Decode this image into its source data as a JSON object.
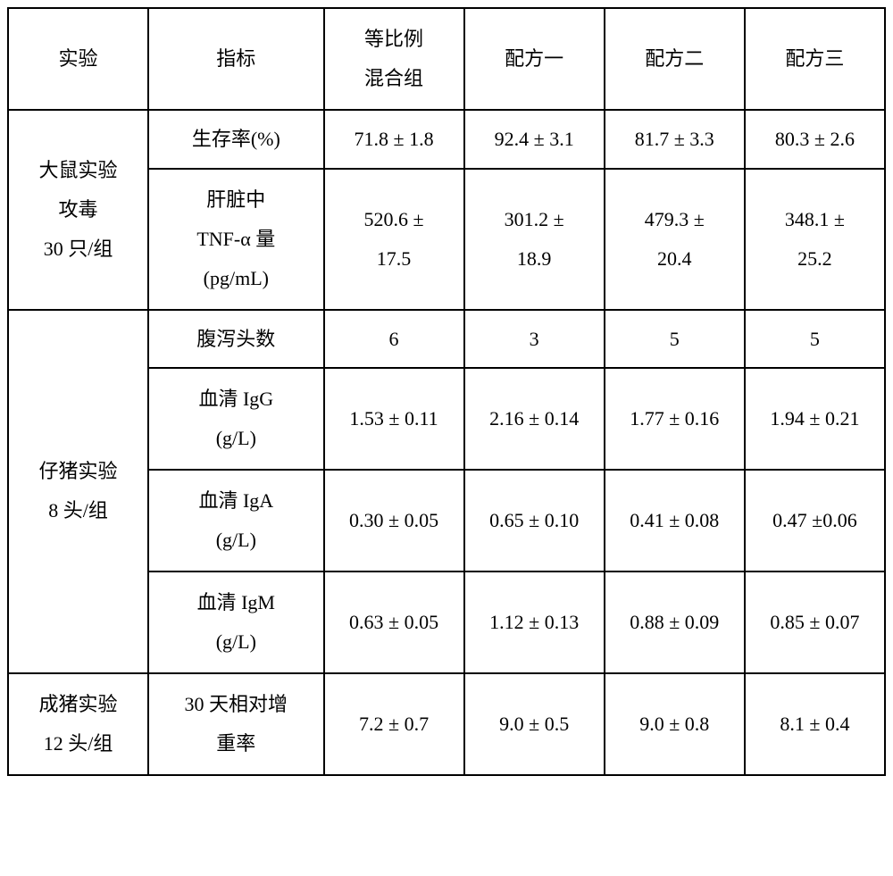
{
  "table": {
    "header": {
      "col1": "实验",
      "col2": "指标",
      "col3_line1": "等比例",
      "col3_line2": "混合组",
      "col4": "配方一",
      "col5": "配方二",
      "col6": "配方三"
    },
    "group1": {
      "label_line1": "大鼠实验",
      "label_line2": "攻毒",
      "label_line3": "30 只/组",
      "row1": {
        "indicator": "生存率(%)",
        "c3": "71.8 ± 1.8",
        "c4": "92.4 ± 3.1",
        "c5": "81.7 ± 3.3",
        "c6": "80.3 ± 2.6"
      },
      "row2": {
        "indicator_line1": "肝脏中",
        "indicator_line2": "TNF-α 量",
        "indicator_line3": "(pg/mL)",
        "c3_line1": "520.6 ±",
        "c3_line2": "17.5",
        "c4_line1": "301.2 ±",
        "c4_line2": "18.9",
        "c5_line1": "479.3 ±",
        "c5_line2": "20.4",
        "c6_line1": "348.1 ±",
        "c6_line2": "25.2"
      }
    },
    "group2": {
      "label_line1": "仔猪实验",
      "label_line2": "8 头/组",
      "row1": {
        "indicator": "腹泻头数",
        "c3": "6",
        "c4": "3",
        "c5": "5",
        "c6": "5"
      },
      "row2": {
        "indicator_line1": "血清 IgG",
        "indicator_line2": "(g/L)",
        "c3": "1.53 ± 0.11",
        "c4": "2.16 ± 0.14",
        "c5": "1.77 ± 0.16",
        "c6": "1.94 ± 0.21"
      },
      "row3": {
        "indicator_line1": "血清 IgA",
        "indicator_line2": "(g/L)",
        "c3": "0.30 ± 0.05",
        "c4": "0.65 ± 0.10",
        "c5": "0.41 ± 0.08",
        "c6": "0.47 ±0.06"
      },
      "row4": {
        "indicator_line1": "血清 IgM",
        "indicator_line2": "(g/L)",
        "c3": "0.63 ± 0.05",
        "c4": "1.12 ± 0.13",
        "c5": "0.88 ± 0.09",
        "c6": "0.85 ± 0.07"
      }
    },
    "group3": {
      "label_line1": "成猪实验",
      "label_line2": "12 头/组",
      "row1": {
        "indicator_line1": "30 天相对增",
        "indicator_line2": "重率",
        "c3": "7.2 ± 0.7",
        "c4": "9.0 ± 0.5",
        "c5": "9.0 ± 0.8",
        "c6": "8.1 ± 0.4"
      }
    }
  }
}
